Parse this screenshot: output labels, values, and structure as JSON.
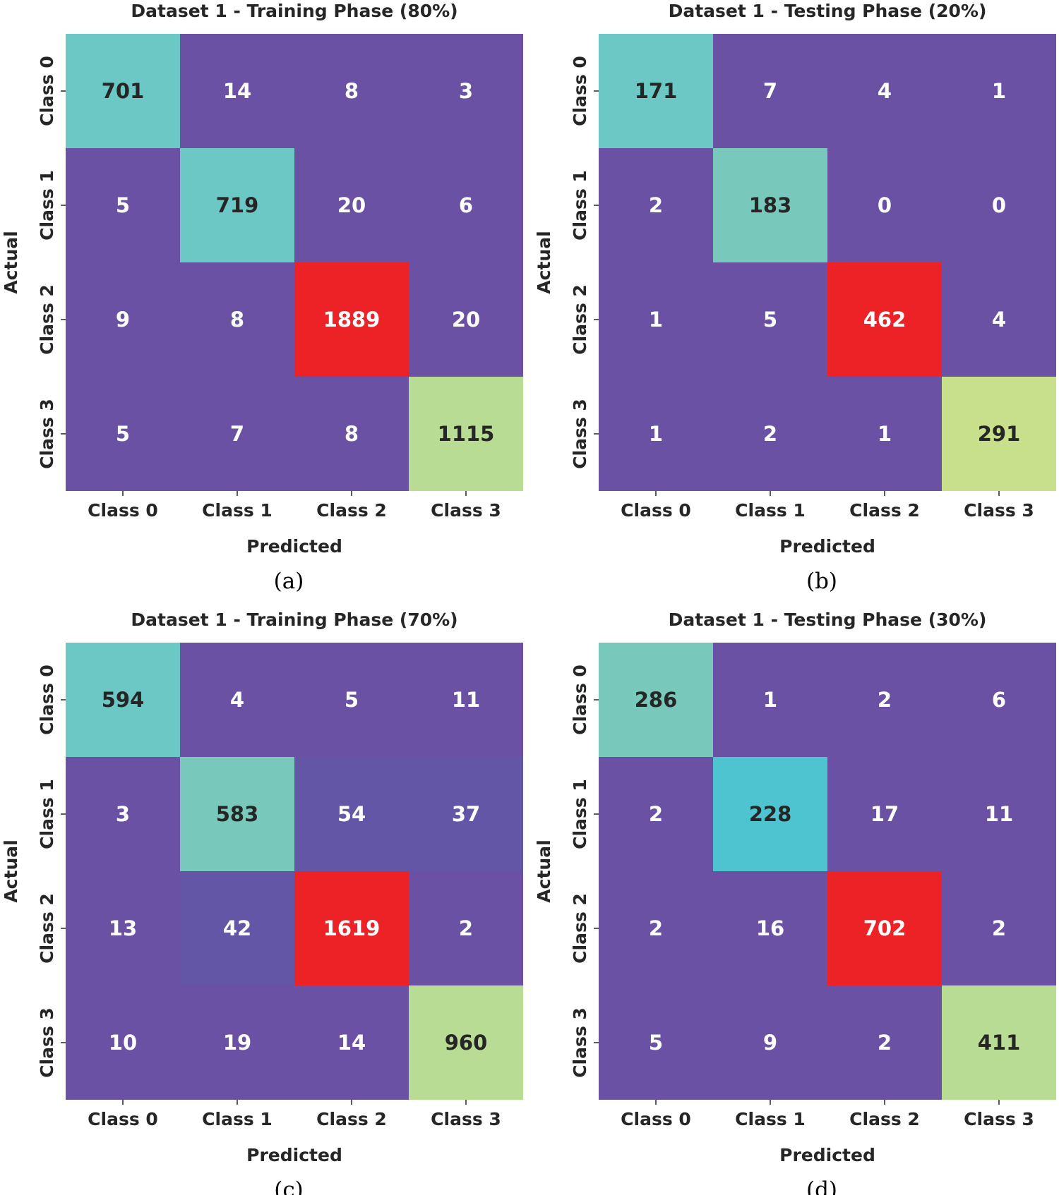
{
  "chart_data": [
    {
      "type": "heatmap",
      "title": "Dataset 1 - Training Phase (80%)",
      "xlabel": "Predicted",
      "ylabel": "Actual",
      "x_categories": [
        "Class 0",
        "Class 1",
        "Class 2",
        "Class 3"
      ],
      "y_categories": [
        "Class 0",
        "Class 1",
        "Class 2",
        "Class 3"
      ],
      "matrix": [
        [
          701,
          14,
          8,
          3
        ],
        [
          5,
          719,
          20,
          6
        ],
        [
          9,
          8,
          1889,
          20
        ],
        [
          5,
          7,
          8,
          1115
        ]
      ],
      "caption": "(a)"
    },
    {
      "type": "heatmap",
      "title": "Dataset 1 - Testing Phase (20%)",
      "xlabel": "Predicted",
      "ylabel": "Actual",
      "x_categories": [
        "Class 0",
        "Class 1",
        "Class 2",
        "Class 3"
      ],
      "y_categories": [
        "Class 0",
        "Class 1",
        "Class 2",
        "Class 3"
      ],
      "matrix": [
        [
          171,
          7,
          4,
          1
        ],
        [
          2,
          183,
          0,
          0
        ],
        [
          1,
          5,
          462,
          4
        ],
        [
          1,
          2,
          1,
          291
        ]
      ],
      "caption": "(b)"
    },
    {
      "type": "heatmap",
      "title": "Dataset 1 - Training Phase (70%)",
      "xlabel": "Predicted",
      "ylabel": "Actual",
      "x_categories": [
        "Class 0",
        "Class 1",
        "Class 2",
        "Class 3"
      ],
      "y_categories": [
        "Class 0",
        "Class 1",
        "Class 2",
        "Class 3"
      ],
      "matrix": [
        [
          594,
          4,
          5,
          11
        ],
        [
          3,
          583,
          54,
          37
        ],
        [
          13,
          42,
          1619,
          2
        ],
        [
          10,
          19,
          14,
          960
        ]
      ],
      "caption": "(c)"
    },
    {
      "type": "heatmap",
      "title": "Dataset 1 - Testing Phase (30%)",
      "xlabel": "Predicted",
      "ylabel": "Actual",
      "x_categories": [
        "Class 0",
        "Class 1",
        "Class 2",
        "Class 3"
      ],
      "y_categories": [
        "Class 0",
        "Class 1",
        "Class 2",
        "Class 3"
      ],
      "matrix": [
        [
          286,
          1,
          2,
          6
        ],
        [
          2,
          228,
          17,
          11
        ],
        [
          2,
          16,
          702,
          2
        ],
        [
          5,
          9,
          2,
          411
        ]
      ],
      "caption": "(d)"
    }
  ],
  "colors": {
    "off_diagonal": "#6a51a3",
    "off_diagonal_mid": "#6356a6",
    "row0_diag": "#6cc8c4",
    "row1_diag": "#78c9bb",
    "row1_diag_alt": "#4fc4d1",
    "row2_diag": "#ec2227",
    "row3_diag": "#b9dc94",
    "row3_diag_alt": "#c8e08c",
    "text_light": "#ffffff",
    "text_dark": "#262626"
  }
}
